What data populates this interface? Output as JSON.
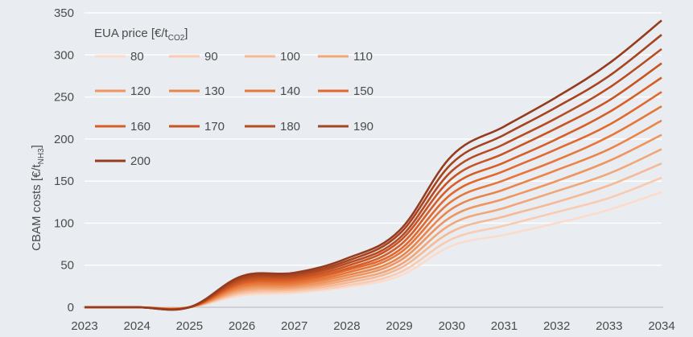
{
  "chart_data": {
    "type": "line",
    "title": "",
    "xlabel": "",
    "ylabel": "CBAM costs [€/t",
    "ylabel_sub": "NH3",
    "ylabel_close": "]",
    "x": [
      2023,
      2024,
      2025,
      2026,
      2027,
      2028,
      2029,
      2030,
      2031,
      2032,
      2033,
      2034
    ],
    "xlim": [
      2023,
      2034
    ],
    "ylim": [
      0,
      350
    ],
    "yticks": [
      0,
      50,
      100,
      150,
      200,
      250,
      300,
      350
    ],
    "grid": "horizontal",
    "legend": {
      "placement": "top-left",
      "title_main": "EUA price [€/t",
      "title_sub": "CO2",
      "title_close": "]"
    },
    "series": [
      {
        "name": "80",
        "color": "#fbdccc",
        "values": [
          0,
          0,
          0,
          14,
          17,
          24,
          37,
          73,
          86,
          100,
          116,
          137
        ]
      },
      {
        "name": "90",
        "color": "#f8cbb2",
        "values": [
          0,
          0,
          0,
          16,
          19,
          26,
          41,
          81,
          97,
          113,
          130,
          154
        ]
      },
      {
        "name": "100",
        "color": "#f5b996",
        "values": [
          0,
          0,
          0,
          18,
          21,
          29,
          46,
          90,
          108,
          125,
          145,
          171
        ]
      },
      {
        "name": "110",
        "color": "#f1a678",
        "values": [
          0,
          0,
          0,
          20,
          23,
          32,
          50,
          99,
          118,
          138,
          159,
          188
        ]
      },
      {
        "name": "120",
        "color": "#ee9560",
        "values": [
          0,
          0,
          0,
          22,
          25,
          35,
          55,
          108,
          129,
          150,
          174,
          205
        ]
      },
      {
        "name": "130",
        "color": "#ea854a",
        "values": [
          0,
          0,
          0,
          24,
          27,
          38,
          59,
          117,
          140,
          163,
          188,
          222
        ]
      },
      {
        "name": "140",
        "color": "#e6763a",
        "values": [
          0,
          0,
          0,
          26,
          29,
          41,
          64,
          126,
          151,
          175,
          203,
          239
        ]
      },
      {
        "name": "150",
        "color": "#e1682e",
        "values": [
          0,
          0,
          0,
          28,
          31,
          44,
          68,
          135,
          162,
          188,
          217,
          256
        ]
      },
      {
        "name": "160",
        "color": "#d65e27",
        "values": [
          0,
          0,
          0,
          29,
          33,
          46,
          73,
          144,
          172,
          200,
          232,
          273
        ]
      },
      {
        "name": "170",
        "color": "#c85423",
        "values": [
          0,
          0,
          0,
          31,
          35,
          49,
          78,
          153,
          183,
          213,
          246,
          290
        ]
      },
      {
        "name": "180",
        "color": "#b84b21",
        "values": [
          0,
          0,
          0,
          33,
          37,
          52,
          82,
          162,
          194,
          225,
          261,
          307
        ]
      },
      {
        "name": "190",
        "color": "#a8431f",
        "values": [
          0,
          0,
          0,
          35,
          39,
          55,
          87,
          171,
          205,
          238,
          275,
          324
        ]
      },
      {
        "name": "200",
        "color": "#963c1e",
        "values": [
          0,
          0,
          0,
          37,
          41,
          58,
          91,
          180,
          215,
          250,
          290,
          341
        ]
      }
    ]
  }
}
